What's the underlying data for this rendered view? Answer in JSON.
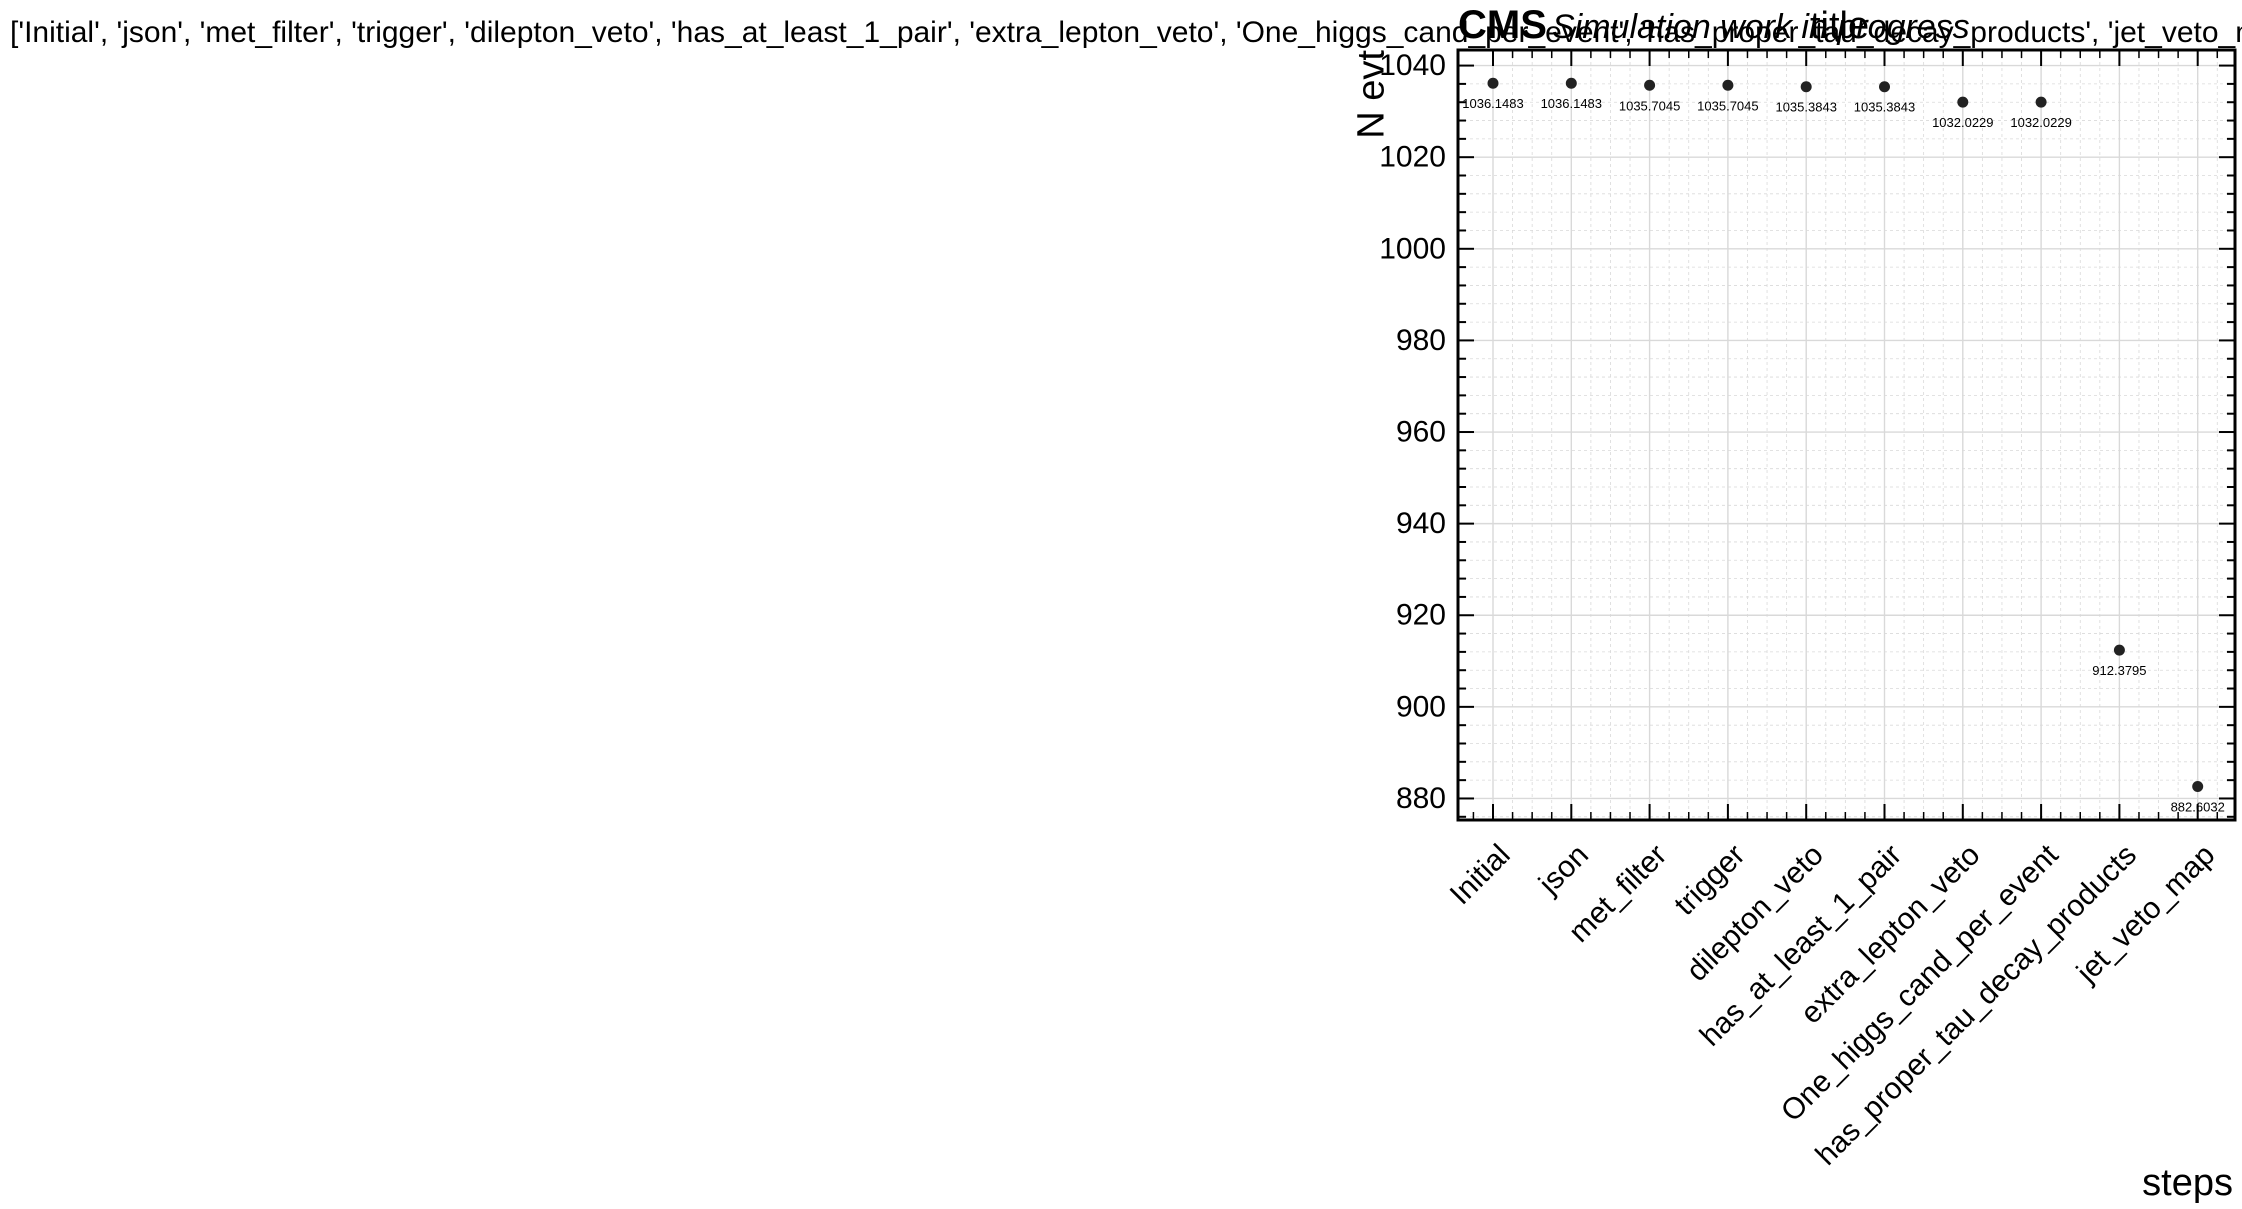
{
  "chart_data": {
    "type": "scatter",
    "figure_title": "['Initial', 'json', 'met_filter', 'trigger', 'dilepton_veto', 'has_at_least_1_pair', 'extra_lepton_veto', 'One_higgs_cand_per_event', 'has_proper_tau_decay_products', 'jet_veto_map']",
    "experiment_label": "CMS",
    "status_label": "Simulation work in progress",
    "title": "title",
    "xlabel": "steps",
    "ylabel": "N evt",
    "categories": [
      "Initial",
      "json",
      "met_filter",
      "trigger",
      "dilepton_veto",
      "has_at_least_1_pair",
      "extra_lepton_veto",
      "One_higgs_cand_per_event",
      "has_proper_tau_decay_products",
      "jet_veto_map"
    ],
    "values": [
      1036.1483,
      1036.1483,
      1035.7045,
      1035.7045,
      1035.3843,
      1035.3843,
      1032.0229,
      1032.0229,
      912.3795,
      882.6032
    ],
    "value_labels": [
      "1036.1483",
      "1036.1483",
      "1035.7045",
      "1035.7045",
      "1035.3843",
      "1035.3843",
      "1032.0229",
      "1032.0229",
      "912.3795",
      "882.6032"
    ],
    "ylim": [
      875.3,
      1043.4
    ],
    "yticks": [
      880,
      900,
      920,
      940,
      960,
      980,
      1000,
      1020,
      1040
    ],
    "ytick_labels": [
      "880",
      "900",
      "920",
      "940",
      "960",
      "980",
      "1000",
      "1020",
      "1040"
    ],
    "grid": true,
    "colors": {
      "marker": "#222222",
      "grid": "#d9d9d9",
      "axes": "#000000"
    }
  }
}
